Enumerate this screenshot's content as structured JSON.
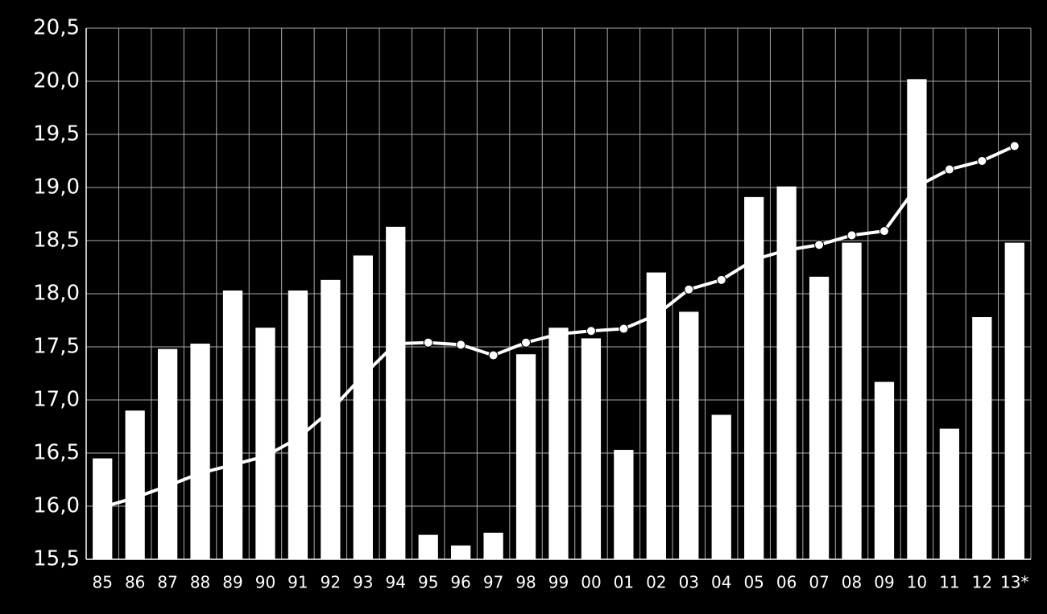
{
  "chart_data": {
    "type": "combo",
    "categories": [
      "85",
      "86",
      "87",
      "88",
      "89",
      "90",
      "91",
      "92",
      "93",
      "94",
      "95",
      "96",
      "97",
      "98",
      "99",
      "00",
      "01",
      "02",
      "03",
      "04",
      "05",
      "06",
      "07",
      "08",
      "09",
      "10",
      "11",
      "12",
      "13*"
    ],
    "series": [
      {
        "type": "line",
        "color": "#ffffff",
        "values": [
          15.99,
          16.08,
          16.19,
          16.31,
          16.39,
          16.47,
          16.64,
          16.9,
          17.23,
          17.53,
          17.54,
          17.52,
          17.42,
          17.54,
          17.62,
          17.65,
          17.67,
          17.8,
          18.04,
          18.13,
          18.32,
          18.41,
          18.46,
          18.55,
          18.59,
          19.01,
          19.17,
          19.25,
          19.39
        ]
      },
      {
        "type": "bar",
        "color": "#ffffff",
        "values": [
          16.45,
          16.9,
          17.48,
          17.53,
          18.03,
          17.68,
          18.03,
          18.13,
          18.36,
          18.63,
          15.73,
          15.63,
          15.75,
          17.43,
          17.68,
          17.58,
          16.53,
          18.2,
          17.83,
          16.86,
          18.91,
          19.01,
          18.16,
          18.48,
          17.17,
          20.02,
          16.73,
          17.78,
          18.48
        ]
      }
    ],
    "ylim": [
      15.5,
      20.5
    ],
    "yticks": [
      {
        "value": 15.5,
        "label": "15,5"
      },
      {
        "value": 16.0,
        "label": "16,0"
      },
      {
        "value": 16.5,
        "label": "16,5"
      },
      {
        "value": 17.0,
        "label": "17,0"
      },
      {
        "value": 17.5,
        "label": "17,5"
      },
      {
        "value": 18.0,
        "label": "18,0"
      },
      {
        "value": 18.5,
        "label": "18,5"
      },
      {
        "value": 19.0,
        "label": "19,0"
      },
      {
        "value": 19.5,
        "label": "19,5"
      },
      {
        "value": 20.0,
        "label": "20,0"
      },
      {
        "value": 20.5,
        "label": "20,5"
      }
    ],
    "grid": true
  }
}
